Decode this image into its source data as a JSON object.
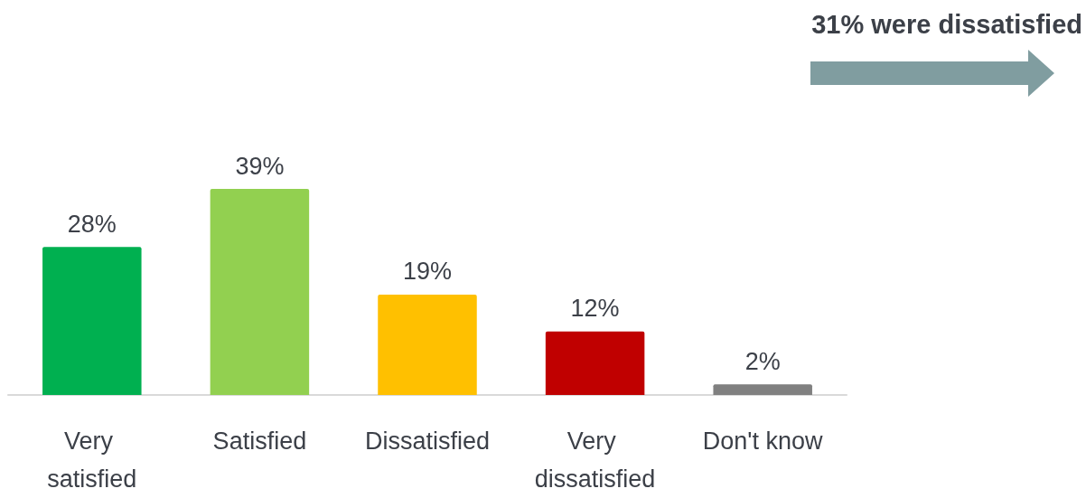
{
  "chart_data": {
    "type": "bar",
    "categories": [
      "Very satisfied",
      "Satisfied",
      "Dissatisfied",
      "Very dissatisfied",
      "Don't know"
    ],
    "values": [
      28,
      39,
      19,
      12,
      2
    ],
    "colors": [
      "#00b050",
      "#92d050",
      "#ffc000",
      "#c00000",
      "#808080"
    ],
    "value_labels": [
      "28%",
      "39%",
      "19%",
      "12%",
      "2%"
    ],
    "annotations": [
      "31% were dissatisfied"
    ],
    "grid": false
  }
}
